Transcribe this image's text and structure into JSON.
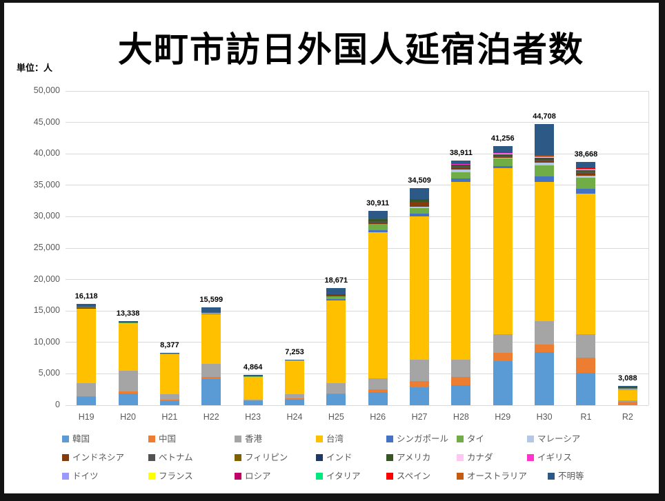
{
  "chart_data": {
    "type": "bar",
    "stacked": true,
    "title": "大町市訪日外国人延宿泊者数",
    "unit_label": "単位：人",
    "categories": [
      "H19",
      "H20",
      "H21",
      "H22",
      "H23",
      "H24",
      "H25",
      "H26",
      "H27",
      "H28",
      "H29",
      "H30",
      "R1",
      "R2"
    ],
    "totals": [
      16118,
      13338,
      8377,
      15599,
      4864,
      7253,
      18671,
      30911,
      34509,
      38911,
      41256,
      44708,
      38668,
      3088
    ],
    "ylim": [
      0,
      50000
    ],
    "ytick_step": 5000,
    "grid": true,
    "legend_position": "bottom",
    "series": [
      {
        "name": "韓国",
        "color": "#5B9BD5",
        "values": [
          1300,
          1900,
          700,
          4200,
          700,
          900,
          1700,
          2100,
          2800,
          3200,
          7000,
          8400,
          5100,
          0
        ]
      },
      {
        "name": "中国",
        "color": "#ED7D31",
        "values": [
          80,
          250,
          150,
          300,
          50,
          200,
          150,
          400,
          1000,
          1300,
          1300,
          1300,
          2500,
          550
        ]
      },
      {
        "name": "香港",
        "color": "#A5A5A5",
        "values": [
          2100,
          3300,
          850,
          2100,
          100,
          600,
          1650,
          1800,
          3400,
          2700,
          3000,
          3700,
          3700,
          180
        ]
      },
      {
        "name": "台湾",
        "color": "#FFC000",
        "values": [
          11900,
          7650,
          6500,
          7900,
          3750,
          5400,
          13200,
          23200,
          22800,
          28300,
          26400,
          22100,
          22400,
          1700
        ]
      },
      {
        "name": "シンガポール",
        "color": "#4472C4",
        "values": [
          40,
          0,
          0,
          80,
          0,
          0,
          200,
          400,
          500,
          600,
          300,
          900,
          700,
          0
        ]
      },
      {
        "name": "タイ",
        "color": "#70AD47",
        "values": [
          50,
          120,
          50,
          0,
          30,
          0,
          400,
          900,
          900,
          1000,
          1200,
          1800,
          1800,
          150
        ]
      },
      {
        "name": "マレーシア",
        "color": "#B4C7E7",
        "values": [
          0,
          0,
          0,
          100,
          0,
          100,
          0,
          0,
          200,
          400,
          200,
          400,
          300,
          100
        ]
      },
      {
        "name": "インドネシア",
        "color": "#843C0C",
        "values": [
          30,
          0,
          0,
          0,
          0,
          0,
          250,
          300,
          700,
          300,
          150,
          250,
          300,
          0
        ]
      },
      {
        "name": "ベトナム",
        "color": "#525252",
        "values": [
          0,
          0,
          0,
          0,
          0,
          0,
          0,
          200,
          0,
          200,
          100,
          200,
          250,
          80
        ]
      },
      {
        "name": "フィリピン",
        "color": "#7F6000",
        "values": [
          90,
          0,
          0,
          0,
          0,
          0,
          0,
          0,
          0,
          0,
          0,
          0,
          100,
          0
        ]
      },
      {
        "name": "インド",
        "color": "#203864",
        "values": [
          0,
          0,
          0,
          0,
          0,
          0,
          0,
          0,
          0,
          0,
          0,
          0,
          0,
          0
        ]
      },
      {
        "name": "アメリカ",
        "color": "#375623",
        "values": [
          60,
          50,
          0,
          0,
          0,
          0,
          150,
          300,
          500,
          300,
          300,
          300,
          250,
          50
        ]
      },
      {
        "name": "カナダ",
        "color": "#FFC8F2",
        "values": [
          0,
          0,
          0,
          0,
          0,
          0,
          0,
          0,
          0,
          0,
          80,
          100,
          100,
          0
        ]
      },
      {
        "name": "イギリス",
        "color": "#FF33CC",
        "values": [
          0,
          0,
          0,
          0,
          0,
          0,
          0,
          0,
          0,
          100,
          80,
          100,
          150,
          0
        ]
      },
      {
        "name": "ドイツ",
        "color": "#9999FF",
        "values": [
          0,
          0,
          0,
          0,
          0,
          0,
          0,
          0,
          0,
          0,
          0,
          0,
          0,
          0
        ]
      },
      {
        "name": "フランス",
        "color": "#FFFF00",
        "values": [
          0,
          0,
          0,
          0,
          0,
          0,
          0,
          0,
          0,
          0,
          0,
          0,
          0,
          0
        ]
      },
      {
        "name": "ロシア",
        "color": "#C00069",
        "values": [
          0,
          0,
          0,
          0,
          0,
          0,
          0,
          0,
          0,
          0,
          0,
          0,
          0,
          0
        ]
      },
      {
        "name": "イタリア",
        "color": "#00E97C",
        "values": [
          0,
          0,
          0,
          0,
          0,
          0,
          0,
          0,
          0,
          0,
          0,
          0,
          0,
          0
        ]
      },
      {
        "name": "スペイン",
        "color": "#FF0000",
        "values": [
          0,
          0,
          0,
          0,
          0,
          0,
          0,
          0,
          0,
          0,
          0,
          0,
          200,
          0
        ]
      },
      {
        "name": "オーストラリア",
        "color": "#C55A11",
        "values": [
          18,
          0,
          0,
          0,
          0,
          0,
          0,
          0,
          0,
          0,
          0,
          150,
          0,
          0
        ]
      },
      {
        "name": "不明等",
        "color": "#2D5986",
        "values": [
          450,
          68,
          127,
          919,
          234,
          53,
          971,
          1311,
          1709,
          511,
          1146,
          5008,
          818,
          278
        ]
      }
    ]
  },
  "colors": {
    "grid": "#d9d9d9",
    "tick_label": "#595959",
    "legend_text": "#595959",
    "data_label": "#000000",
    "title": "#000000",
    "frame": "#141414"
  }
}
